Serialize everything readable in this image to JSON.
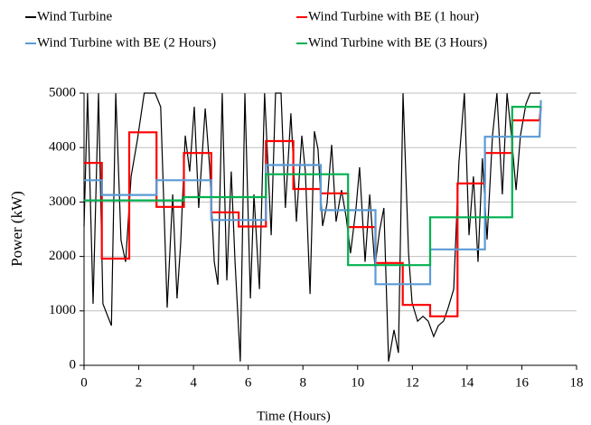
{
  "chart_data": {
    "type": "line",
    "x_label": "Time (Hours)",
    "y_label": "Power (kW)",
    "xlim": [
      0,
      18
    ],
    "xticks": [
      0,
      2,
      4,
      6,
      8,
      10,
      12,
      14,
      16,
      18
    ],
    "ylim": [
      0,
      5000
    ],
    "yticks": [
      0,
      1000,
      2000,
      3000,
      4000,
      5000
    ],
    "grid": true,
    "series": [
      {
        "name": "Wind Turbine",
        "color": "#000000",
        "x": [
          0,
          0.13,
          0.33,
          0.53,
          0.69,
          1.0,
          1.16,
          1.35,
          1.52,
          1.72,
          1.95,
          2.2,
          2.6,
          2.8,
          3.04,
          3.24,
          3.4,
          3.53,
          3.7,
          3.86,
          4.03,
          4.19,
          4.43,
          4.59,
          4.76,
          4.89,
          5.05,
          5.22,
          5.38,
          5.52,
          5.71,
          5.88,
          6.08,
          6.21,
          6.41,
          6.6,
          6.84,
          7.0,
          7.2,
          7.36,
          7.56,
          7.76,
          7.96,
          8.09,
          8.26,
          8.42,
          8.55,
          8.72,
          8.88,
          9.05,
          9.21,
          9.41,
          9.58,
          9.74,
          9.94,
          10.07,
          10.27,
          10.44,
          10.63,
          10.8,
          10.96,
          11.13,
          11.33,
          11.49,
          11.66,
          11.86,
          11.99,
          12.19,
          12.39,
          12.58,
          12.78,
          12.95,
          13.14,
          13.31,
          13.51,
          13.7,
          13.9,
          14.07,
          14.23,
          14.4,
          14.56,
          14.73,
          14.93,
          15.09,
          15.29,
          15.46,
          15.62,
          15.79,
          15.95,
          16.15,
          16.31,
          16.68
        ],
        "values": [
          2550,
          5000,
          1130,
          5000,
          1130,
          730,
          5000,
          2300,
          1900,
          3470,
          4140,
          5000,
          5000,
          4750,
          1060,
          3140,
          1230,
          2230,
          4220,
          3560,
          4750,
          2890,
          4720,
          3640,
          1900,
          1480,
          5000,
          1560,
          3560,
          1900,
          70,
          5000,
          1230,
          3140,
          1400,
          5000,
          2390,
          5000,
          5000,
          2890,
          4630,
          2640,
          4220,
          3560,
          1310,
          4300,
          3970,
          2560,
          2970,
          4050,
          2640,
          3220,
          2720,
          2060,
          2890,
          3640,
          1900,
          3140,
          1810,
          2470,
          2890,
          70,
          650,
          230,
          5000,
          2060,
          1150,
          810,
          900,
          810,
          530,
          730,
          810,
          1060,
          1400,
          3720,
          5000,
          2390,
          3470,
          1900,
          3800,
          2310,
          4220,
          5000,
          3140,
          5000,
          4220,
          3220,
          4220,
          4800,
          5000,
          5000
        ]
      },
      {
        "name": "Wind Turbine with BE (1 hour)",
        "color": "#ff0000",
        "x": [
          0,
          0.65,
          0.65,
          1.65,
          1.65,
          2.65,
          2.65,
          3.65,
          3.65,
          4.65,
          4.65,
          5.65,
          5.65,
          6.65,
          6.65,
          7.65,
          7.65,
          8.65,
          8.65,
          9.65,
          9.65,
          10.65,
          10.65,
          11.65,
          11.65,
          12.65,
          12.65,
          13.65,
          13.65,
          14.65,
          14.65,
          15.65,
          15.65,
          16.65,
          16.7
        ],
        "values": [
          3720,
          3720,
          1960,
          1960,
          4280,
          4280,
          2910,
          2910,
          3900,
          3900,
          2810,
          2810,
          2550,
          2550,
          4120,
          4120,
          3240,
          3240,
          3160,
          3160,
          2540,
          2540,
          1880,
          1880,
          1110,
          1110,
          900,
          900,
          3340,
          3340,
          3900,
          3900,
          4500,
          4500,
          4750
        ]
      },
      {
        "name": "Wind Turbine with BE (2 Hours)",
        "color": "#5b9bd5",
        "x": [
          0,
          0.65,
          0.65,
          2.65,
          2.65,
          4.65,
          4.65,
          6.65,
          6.65,
          8.65,
          8.65,
          10.65,
          10.65,
          12.65,
          12.65,
          14.65,
          14.65,
          16.65,
          16.7
        ],
        "values": [
          3400,
          3400,
          3130,
          3130,
          3400,
          3400,
          2670,
          2670,
          3680,
          3680,
          2850,
          2850,
          1490,
          1490,
          2130,
          2130,
          4200,
          4200,
          4870
        ]
      },
      {
        "name": "Wind Turbine with BE (3 Hours)",
        "color": "#00b050",
        "x": [
          0,
          3.65,
          3.65,
          6.65,
          6.65,
          9.65,
          9.65,
          12.65,
          12.65,
          15.65,
          15.65,
          16.7
        ],
        "values": [
          3030,
          3030,
          3090,
          3090,
          3510,
          3510,
          1840,
          1840,
          2720,
          2720,
          4750,
          4750
        ]
      }
    ]
  }
}
